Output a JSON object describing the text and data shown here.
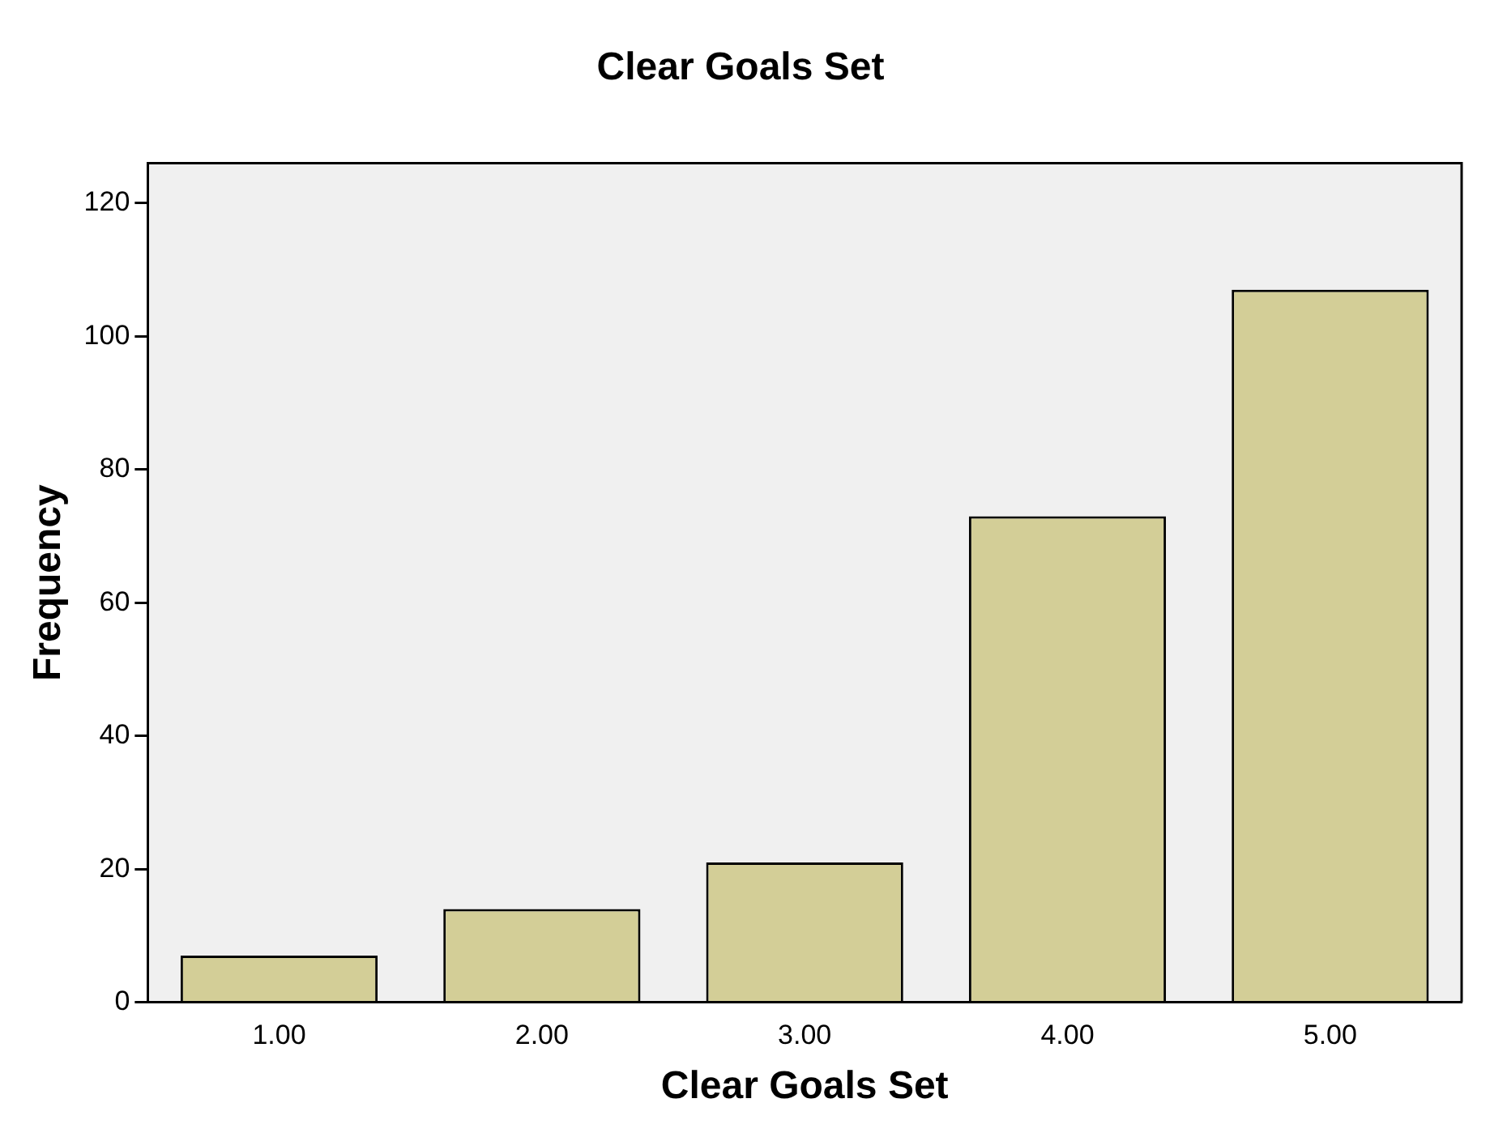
{
  "chart_data": {
    "type": "bar",
    "title": "Clear Goals Set",
    "xlabel": "Clear Goals Set",
    "ylabel": "Frequency",
    "categories": [
      "1.00",
      "2.00",
      "3.00",
      "4.00",
      "5.00"
    ],
    "values": [
      7,
      14,
      21,
      73,
      107
    ],
    "color": "#d3ce97",
    "ylim": [
      0,
      126
    ],
    "yticks": [
      0,
      20,
      40,
      60,
      80,
      100,
      120
    ]
  }
}
